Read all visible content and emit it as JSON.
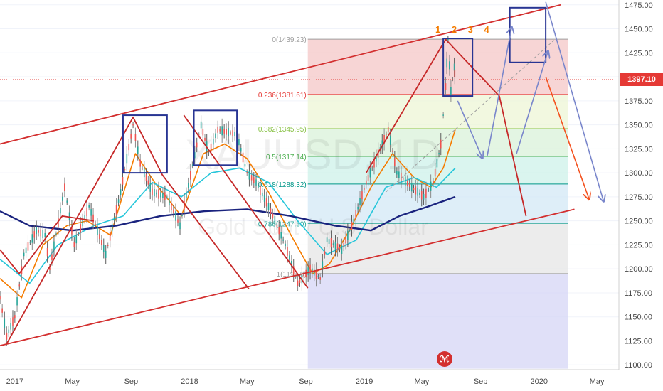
{
  "chart_data": {
    "type": "line",
    "watermark_symbol": "XAUUSD, 1D",
    "watermark_name": "Gold Spot / U.S. Dollar",
    "current_price": "1397.10",
    "x_ticks": [
      "2017",
      "May",
      "Sep",
      "2018",
      "May",
      "Sep",
      "2019",
      "May",
      "Sep",
      "2020",
      "May"
    ],
    "y_ticks": [
      1100,
      1125,
      1150,
      1175,
      1200,
      1225,
      1250,
      1275,
      1300,
      1325,
      1350,
      1375,
      1400,
      1425,
      1450,
      1475
    ],
    "ylim": [
      1095,
      1480
    ],
    "fib_levels": [
      {
        "label": "0(1439.23)",
        "value": 1439.23,
        "color": "#9e9e9e",
        "fill": "#f4c7c7"
      },
      {
        "label": "0.236(1381.61)",
        "value": 1381.61,
        "color": "#e53935",
        "fill": "#eef5d6"
      },
      {
        "label": "0.382(1345.95)",
        "value": 1345.95,
        "color": "#8bc34a",
        "fill": "#d9f2d9"
      },
      {
        "label": "0.5(1317.14)",
        "value": 1317.14,
        "color": "#4caf50",
        "fill": "#cdf1ea"
      },
      {
        "label": "0.618(1288.32)",
        "value": 1288.32,
        "color": "#009688",
        "fill": "#d3e8f5"
      },
      {
        "label": "0.786(1247.30)",
        "value": 1247.3,
        "color": "#26a69a",
        "fill": "#e6e6e6"
      },
      {
        "label": "1(1195.0)",
        "value": 1195.0,
        "color": "#9e9e9e",
        "fill": "#d5d5f5"
      }
    ],
    "fib_bottom_value": 1096,
    "price_series": {
      "name": "Price",
      "x": [
        "2016-12-01",
        "2016-12-15",
        "2017-01-01",
        "2017-01-20",
        "2017-02-15",
        "2017-03-05",
        "2017-03-15",
        "2017-04-15",
        "2017-05-05",
        "2017-06-05",
        "2017-07-10",
        "2017-08-10",
        "2017-09-05",
        "2017-09-20",
        "2017-10-15",
        "2017-11-15",
        "2017-12-12",
        "2018-01-25",
        "2018-02-10",
        "2018-03-01",
        "2018-04-10",
        "2018-05-01",
        "2018-05-20",
        "2018-06-15",
        "2018-07-20",
        "2018-08-15",
        "2018-09-10",
        "2018-10-01",
        "2018-10-15",
        "2018-11-15",
        "2018-12-10",
        "2019-01-05",
        "2019-01-30",
        "2019-02-20",
        "2019-03-10",
        "2019-04-10",
        "2019-05-05",
        "2019-05-25",
        "2019-06-10",
        "2019-06-20",
        "2019-06-25",
        "2019-07-01",
        "2019-07-08",
        "2019-07-10"
      ],
      "values": [
        1170,
        1130,
        1150,
        1215,
        1240,
        1235,
        1200,
        1285,
        1225,
        1265,
        1215,
        1280,
        1350,
        1310,
        1280,
        1275,
        1245,
        1350,
        1320,
        1345,
        1340,
        1300,
        1290,
        1265,
        1225,
        1185,
        1200,
        1190,
        1230,
        1220,
        1250,
        1290,
        1320,
        1345,
        1300,
        1285,
        1275,
        1290,
        1330,
        1390,
        1439,
        1385,
        1410,
        1397
      ]
    },
    "ma_series": [
      {
        "name": "MA20",
        "color": "#f57c00",
        "x": [
          "2016-12-01",
          "2017-01-15",
          "2017-03-01",
          "2017-04-20",
          "2017-06-01",
          "2017-07-20",
          "2017-09-10",
          "2017-10-20",
          "2017-12-15",
          "2018-01-30",
          "2018-03-15",
          "2018-05-01",
          "2018-06-15",
          "2018-08-01",
          "2018-09-15",
          "2018-10-20",
          "2018-12-01",
          "2019-01-15",
          "2019-03-01",
          "2019-04-15",
          "2019-05-20",
          "2019-06-15",
          "2019-07-10"
        ],
        "values": [
          1190,
          1170,
          1225,
          1245,
          1250,
          1235,
          1320,
          1290,
          1255,
          1320,
          1330,
          1315,
          1280,
          1235,
          1195,
          1205,
          1240,
          1285,
          1320,
          1295,
          1285,
          1305,
          1345
        ]
      },
      {
        "name": "MA50",
        "color": "#26c6da",
        "x": [
          "2016-12-01",
          "2017-02-01",
          "2017-04-01",
          "2017-06-15",
          "2017-08-15",
          "2017-10-15",
          "2017-12-15",
          "2018-02-15",
          "2018-04-15",
          "2018-06-15",
          "2018-08-15",
          "2018-10-15",
          "2018-12-15",
          "2019-02-15",
          "2019-04-15",
          "2019-06-01",
          "2019-07-10"
        ],
        "values": [
          1210,
          1185,
          1225,
          1245,
          1255,
          1290,
          1275,
          1300,
          1305,
          1290,
          1250,
          1215,
          1230,
          1285,
          1295,
          1285,
          1305
        ]
      },
      {
        "name": "MA200",
        "color": "#1a237e",
        "x": [
          "2016-12-01",
          "2017-02-01",
          "2017-05-01",
          "2017-08-01",
          "2017-11-01",
          "2018-02-01",
          "2018-05-01",
          "2018-08-01",
          "2018-11-01",
          "2019-01-15",
          "2019-03-15",
          "2019-05-15",
          "2019-07-10"
        ],
        "values": [
          1260,
          1245,
          1240,
          1245,
          1255,
          1260,
          1262,
          1255,
          1245,
          1240,
          1255,
          1265,
          1275
        ]
      }
    ],
    "channel": [
      {
        "name": "upper",
        "x": [
          "2016-12-01",
          "2020-02-15"
        ],
        "values": [
          1330,
          1475
        ]
      },
      {
        "name": "lower",
        "x": [
          "2016-12-01",
          "2020-03-15"
        ],
        "values": [
          1120,
          1262
        ]
      }
    ],
    "zigzag_red": [
      {
        "x": [
          "2016-12-01",
          "2017-01-10",
          "2017-04-10",
          "2017-06-15"
        ],
        "values": [
          1220,
          1195,
          1255,
          1250
        ]
      },
      {
        "x": [
          "2016-12-15",
          "2017-09-05",
          "2017-11-05",
          "2018-05-05"
        ],
        "values": [
          1122,
          1358,
          1298,
          1179
        ]
      },
      {
        "x": [
          "2017-12-20",
          "2018-09-05"
        ],
        "values": [
          1360,
          1180
        ]
      },
      {
        "x": [
          "2019-01-05",
          "2019-06-20",
          "2019-10-10",
          "2019-12-05"
        ],
        "values": [
          1300,
          1439,
          1380,
          1255
        ]
      }
    ],
    "boxes": [
      {
        "x": [
          "2017-08-15",
          "2017-11-15"
        ],
        "values": [
          1300,
          1360
        ]
      },
      {
        "x": [
          "2018-01-10",
          "2018-04-10"
        ],
        "values": [
          1308,
          1365
        ]
      },
      {
        "x": [
          "2019-06-15",
          "2019-08-15"
        ],
        "values": [
          1380,
          1440
        ]
      },
      {
        "x": [
          "2019-11-01",
          "2020-01-15"
        ],
        "values": [
          1415,
          1472
        ]
      }
    ],
    "arrows_blue": [
      {
        "x": [
          "2019-07-15",
          "2019-09-05"
        ],
        "values": [
          1375,
          1315
        ]
      },
      {
        "x": [
          "2019-09-15",
          "2019-11-05"
        ],
        "values": [
          1318,
          1452
        ]
      },
      {
        "x": [
          "2019-11-15",
          "2020-01-20"
        ],
        "values": [
          1320,
          1427
        ]
      },
      {
        "x": [
          "2020-01-15",
          "2020-05-15"
        ],
        "values": [
          1478,
          1270
        ]
      }
    ],
    "arrow_orange": {
      "x": [
        "2020-01-15",
        "2020-04-15"
      ],
      "values": [
        1400,
        1272
      ]
    },
    "wave_labels": "1 2 3 4"
  }
}
